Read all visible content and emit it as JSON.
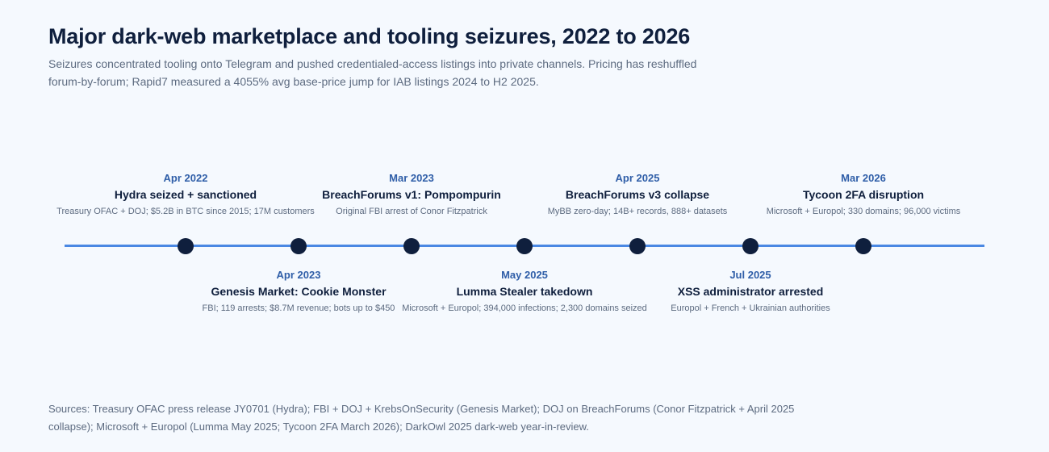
{
  "title": "Major dark-web marketplace and tooling seizures, 2022 to 2026",
  "subtitle": "Seizures concentrated tooling onto Telegram and pushed credentialed-access listings into private channels. Pricing has reshuffled forum-by-forum; Rapid7 measured a 4055% avg base-price jump for IAB listings 2024 to H2 2025.",
  "colors": {
    "background": "#f5f9fe",
    "axis_line": "#4a88e3",
    "node": "#0f1f3d",
    "date_text": "#2f5ea8",
    "title_text": "#0f1f3d",
    "muted_text": "#5d6b80"
  },
  "events": [
    {
      "date": "Apr 2022",
      "name": "Hydra seized + sanctioned",
      "desc": "Treasury OFAC + DOJ; $5.2B in BTC since 2015; 17M customers",
      "side": "above"
    },
    {
      "date": "Apr 2023",
      "name": "Genesis Market: Cookie Monster",
      "desc": "FBI; 119 arrests; $8.7M revenue; bots up to $450",
      "side": "below"
    },
    {
      "date": "Mar 2023",
      "name": "BreachForums v1: Pompompurin",
      "desc": "Original FBI arrest of Conor Fitzpatrick",
      "side": "above"
    },
    {
      "date": "May 2025",
      "name": "Lumma Stealer takedown",
      "desc": "Microsoft + Europol; 394,000 infections; 2,300 domains seized",
      "side": "below"
    },
    {
      "date": "Apr 2025",
      "name": "BreachForums v3 collapse",
      "desc": "MyBB zero-day; 14B+ records, 888+ datasets",
      "side": "above"
    },
    {
      "date": "Jul 2025",
      "name": "XSS administrator arrested",
      "desc": "Europol + French + Ukrainian authorities",
      "side": "below"
    },
    {
      "date": "Mar 2026",
      "name": "Tycoon 2FA disruption",
      "desc": "Microsoft + Europol; 330 domains; 96,000 victims",
      "side": "above"
    }
  ],
  "sources": "Sources: Treasury OFAC press release JY0701 (Hydra); FBI + DOJ + KrebsOnSecurity (Genesis Market); DOJ on BreachForums (Conor Fitzpatrick + April 2025 collapse); Microsoft + Europol (Lumma May 2025; Tycoon 2FA March 2026); DarkOwl 2025 dark-web year-in-review."
}
